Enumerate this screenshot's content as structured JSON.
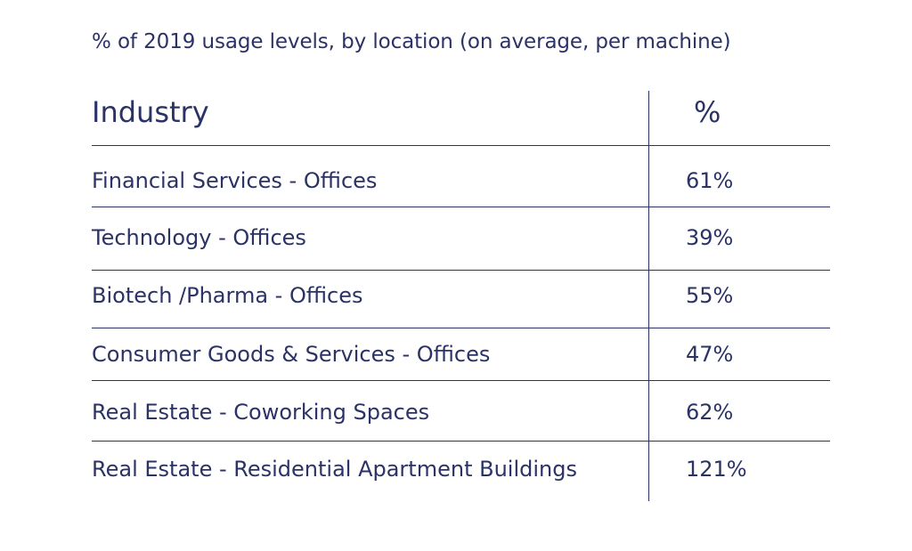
{
  "chart_data": {
    "type": "table",
    "title": "% of 2019 usage levels, by location (on average, per machine)",
    "columns": [
      "Industry",
      "%"
    ],
    "rows": [
      {
        "industry": "Financial  Services - Offices",
        "value_label": "61%",
        "value": 61
      },
      {
        "industry": "Technology - Offices",
        "value_label": "39%",
        "value": 39
      },
      {
        "industry": "Biotech /Pharma - Offices",
        "value_label": "55%",
        "value": 55
      },
      {
        "industry": "Consumer Goods & Services - Offices",
        "value_label": "47%",
        "value": 47
      },
      {
        "industry": "Real Estate - Coworking Spaces",
        "value_label": "62%",
        "value": 62
      },
      {
        "industry": "Real Estate - Residential Apartment Buildings",
        "value_label": "121%",
        "value": 121
      }
    ]
  },
  "colors": {
    "text": "#2b3266",
    "rules": "#2b3266",
    "background": "#ffffff"
  }
}
